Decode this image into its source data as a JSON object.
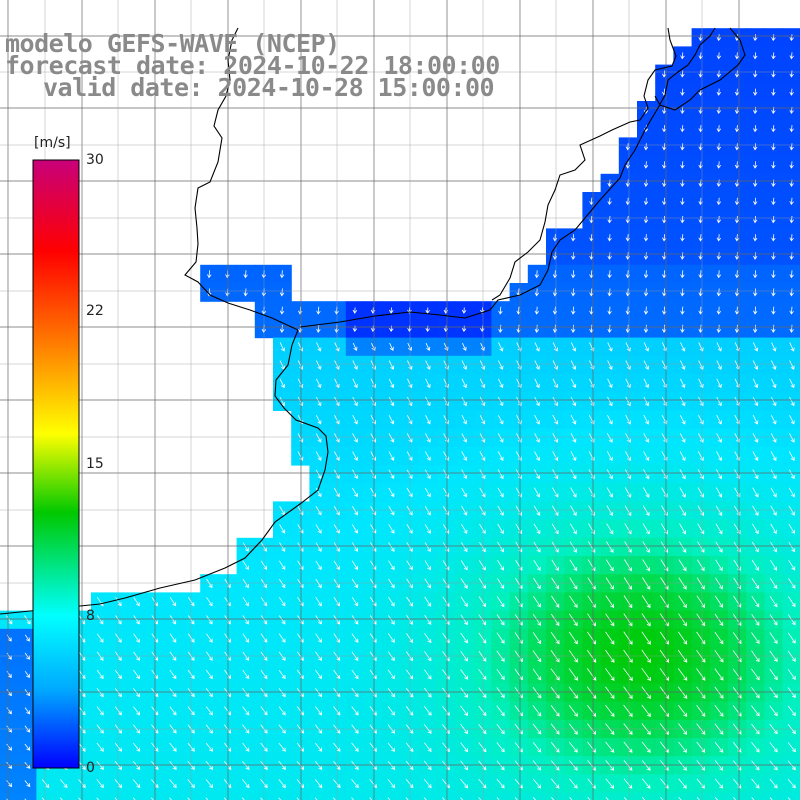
{
  "title": {
    "line1": "modelo GEFS-WAVE (NCEP)",
    "line2": "forecast date: 2024-10-22 18:00:00",
    "line3": "valid date: 2024-10-28 15:00:00"
  },
  "colorbar": {
    "unit_label": "[m/s]",
    "ticks": [
      "30",
      "22",
      "15",
      "8",
      "0"
    ],
    "gradient_colors": [
      "#c8007a",
      "#ff0000",
      "#ffa500",
      "#ffff00",
      "#00c800",
      "#00ffff",
      "#00aaff",
      "#0000ff"
    ]
  },
  "map": {
    "land_color": "#ffffff",
    "grid_color": "#666666",
    "coastline_color": "#000000",
    "arrow_color": "#ffffff"
  }
}
